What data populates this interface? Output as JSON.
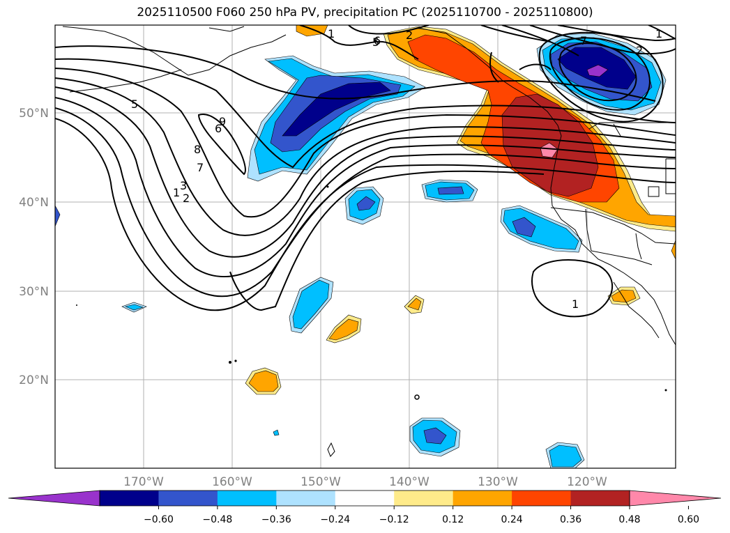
{
  "title": "2025110500 F060 250 hPa PV, precipitation PC (2025110700 - 2025110800)",
  "map": {
    "lon_labels": [
      "170°W",
      "160°W",
      "150°W",
      "140°W",
      "130°W",
      "120°W"
    ],
    "lat_labels": [
      "50°N",
      "40°N",
      "30°N",
      "20°N"
    ],
    "contour_labels": [
      "1",
      "2",
      "3",
      "5",
      "6",
      "7",
      "8",
      "9",
      "1",
      "2",
      "5",
      "6",
      "7",
      "1",
      "2",
      "1"
    ]
  },
  "colorbar": {
    "ticks": [
      "−0.60",
      "−0.48",
      "−0.36",
      "−0.24",
      "−0.12",
      "0.12",
      "0.24",
      "0.36",
      "0.48",
      "0.60"
    ],
    "colors": [
      "#9933cc",
      "#00008b",
      "#3355cc",
      "#00bfff",
      "#aee2ff",
      "#ffffff",
      "#ffeb8a",
      "#ffa500",
      "#ff4500",
      "#b22222",
      "#ff88aa"
    ]
  }
}
